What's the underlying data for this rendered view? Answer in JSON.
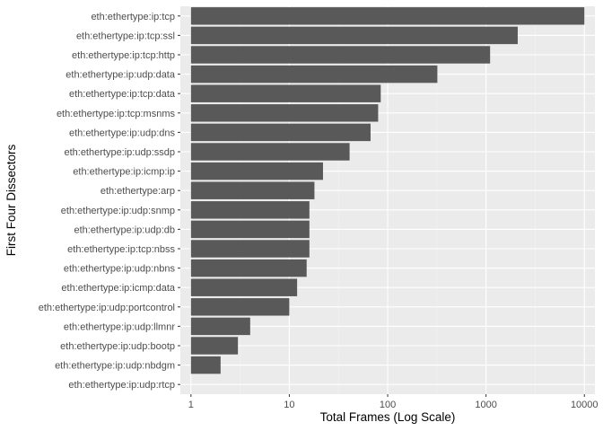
{
  "chart_data": {
    "type": "bar",
    "orientation": "horizontal",
    "title": "",
    "xlabel": "Total Frames (Log Scale)",
    "ylabel": "First Four Dissectors",
    "x_scale": "log10",
    "xlim": [
      0.78,
      12800
    ],
    "x_ticks": [
      1,
      10,
      100,
      1000,
      10000
    ],
    "x_tick_labels": [
      "1",
      "10",
      "100",
      "1000",
      "10000"
    ],
    "categories": [
      "eth:ethertype:ip:tcp",
      "eth:ethertype:ip:tcp:ssl",
      "eth:ethertype:ip:tcp:http",
      "eth:ethertype:ip:udp:data",
      "eth:ethertype:ip:tcp:data",
      "eth:ethertype:ip:tcp:msnms",
      "eth:ethertype:ip:udp:dns",
      "eth:ethertype:ip:udp:ssdp",
      "eth:ethertype:ip:icmp:ip",
      "eth:ethertype:arp",
      "eth:ethertype:ip:udp:snmp",
      "eth:ethertype:ip:udp:db",
      "eth:ethertype:ip:tcp:nbss",
      "eth:ethertype:ip:udp:nbns",
      "eth:ethertype:ip:icmp:data",
      "eth:ethertype:ip:udp:portcontrol",
      "eth:ethertype:ip:udp:llmnr",
      "eth:ethertype:ip:udp:bootp",
      "eth:ethertype:ip:udp:nbdgm",
      "eth:ethertype:ip:udp:rtcp"
    ],
    "values": [
      10000,
      2100,
      1100,
      320,
      85,
      80,
      67,
      41,
      22,
      18,
      16,
      16,
      16,
      15,
      12,
      10,
      4,
      3,
      2,
      1
    ],
    "colors": {
      "panel_bg": "#ebebeb",
      "grid_major": "#ffffff",
      "grid_minor": "#f4f4f4",
      "bar_fill": "#595959",
      "text": "#4d4d4d",
      "tick": "#333333",
      "title": "#000000"
    }
  }
}
